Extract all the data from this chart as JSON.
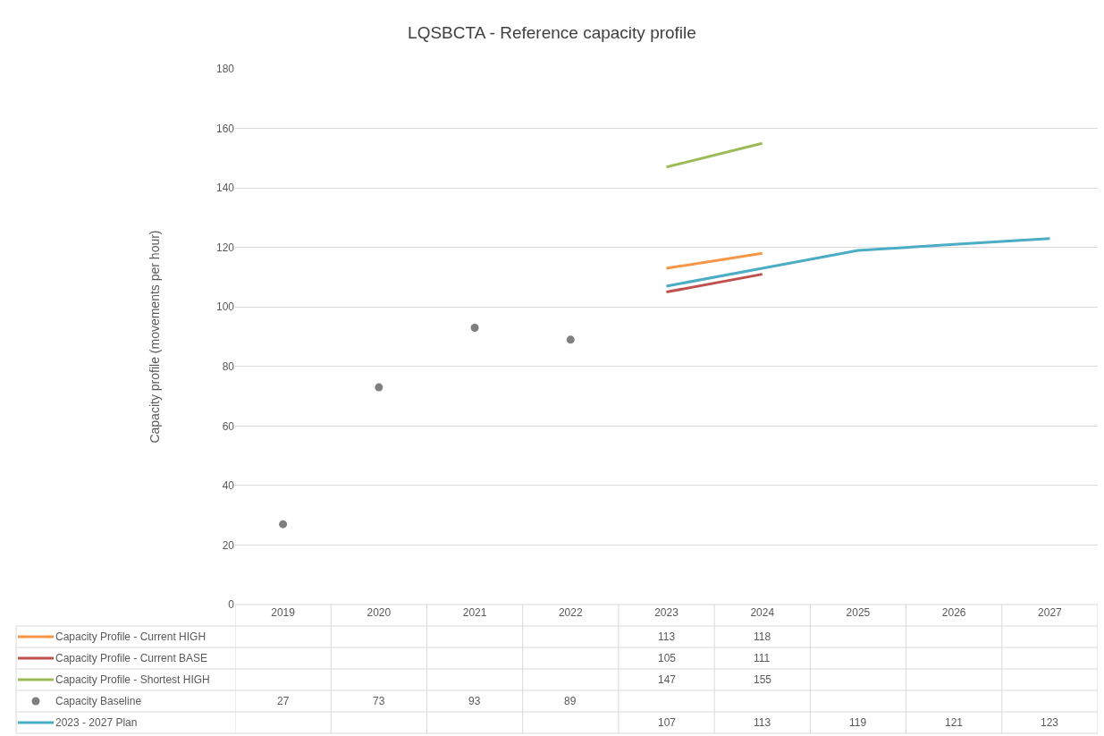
{
  "chart_data": {
    "type": "line",
    "title": "LQSBCTA - Reference capacity profile",
    "ylabel": "Capacity profile (movements per hour)",
    "categories": [
      "2019",
      "2020",
      "2021",
      "2022",
      "2023",
      "2024",
      "2025",
      "2026",
      "2027"
    ],
    "series": [
      {
        "name": "Capacity Profile - Current HIGH",
        "color": "#f79646",
        "values": [
          null,
          null,
          null,
          null,
          113,
          118,
          null,
          null,
          null
        ]
      },
      {
        "name": "Capacity Profile - Current BASE",
        "color": "#c0504d",
        "values": [
          null,
          null,
          null,
          null,
          105,
          111,
          null,
          null,
          null
        ]
      },
      {
        "name": "Capacity Profile - Shortest HIGH",
        "color": "#9bbb59",
        "values": [
          null,
          null,
          null,
          null,
          147,
          155,
          null,
          null,
          null
        ]
      },
      {
        "name": "Capacity Baseline",
        "type": "scatter",
        "marker": "circle",
        "color": "#7f7f7f",
        "values": [
          27,
          73,
          93,
          89,
          null,
          null,
          null,
          null,
          null
        ]
      },
      {
        "name": "2023 - 2027 Plan",
        "color": "#4bacc6",
        "values": [
          null,
          null,
          null,
          null,
          107,
          113,
          119,
          121,
          123
        ]
      }
    ],
    "ylim": [
      0,
      180
    ],
    "yticks": [
      0,
      20,
      40,
      60,
      80,
      100,
      120,
      140,
      160,
      180
    ],
    "grid": "y",
    "legend": "bottom left",
    "data_labels": true
  }
}
